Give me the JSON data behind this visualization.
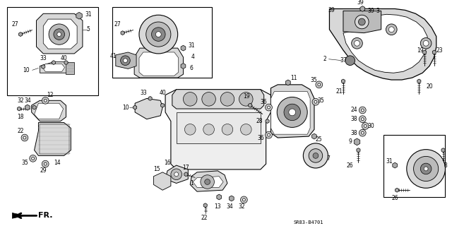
{
  "bg_color": "#ffffff",
  "line_color": "#000000",
  "fig_width": 6.4,
  "fig_height": 3.2,
  "dpi": 100,
  "diagram_code": "SR83-B4701",
  "font_size": 5.5,
  "lw_main": 0.7,
  "lw_thin": 0.4,
  "gray_fill": "#d8d8d8",
  "dark_fill": "#888888",
  "mid_fill": "#bbbbbb"
}
